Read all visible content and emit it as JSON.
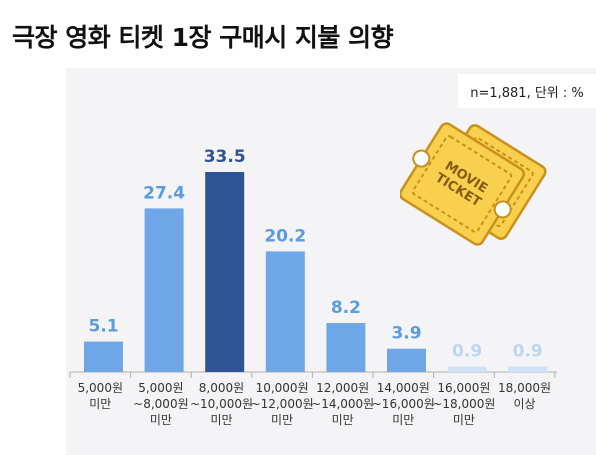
{
  "title": "극장 영화 티켓 1장 구매시 지불 의향",
  "meta": "n=1,881, 단위 : %",
  "ticket_text": "MOVIE TICKET",
  "colors": {
    "bar_default": "#6ea6e8",
    "bar_highlight": "#2f5496",
    "bar_faint": "#cfe1f6",
    "label_default": "#5b9be0",
    "label_highlight": "#2f5496",
    "label_faint": "#bcd6f2",
    "ticket_fill": "#f9d04d",
    "ticket_stroke": "#c9901e"
  },
  "chart_data": {
    "type": "bar",
    "categories": [
      [
        "5,000원",
        "미만"
      ],
      [
        "5,000원",
        "~8,000원",
        "미만"
      ],
      [
        "8,000원",
        "~10,000원",
        "미만"
      ],
      [
        "10,000원",
        "~12,000원",
        "미만"
      ],
      [
        "12,000원",
        "~14,000원",
        "미만"
      ],
      [
        "14,000원",
        "~16,000원",
        "미만"
      ],
      [
        "16,000원",
        "~18,000원",
        "미만"
      ],
      [
        "18,000원",
        "이상"
      ]
    ],
    "values": [
      5.1,
      27.4,
      33.5,
      20.2,
      8.2,
      3.9,
      0.9,
      0.9
    ],
    "value_labels": [
      "5.1",
      "27.4",
      "33.5",
      "20.2",
      "8.2",
      "3.9",
      "0.9",
      "0.9"
    ],
    "highlight_index": 2,
    "faint_indices": [
      6,
      7
    ],
    "ylim": [
      0,
      37
    ],
    "grid": false,
    "legend": "none"
  }
}
